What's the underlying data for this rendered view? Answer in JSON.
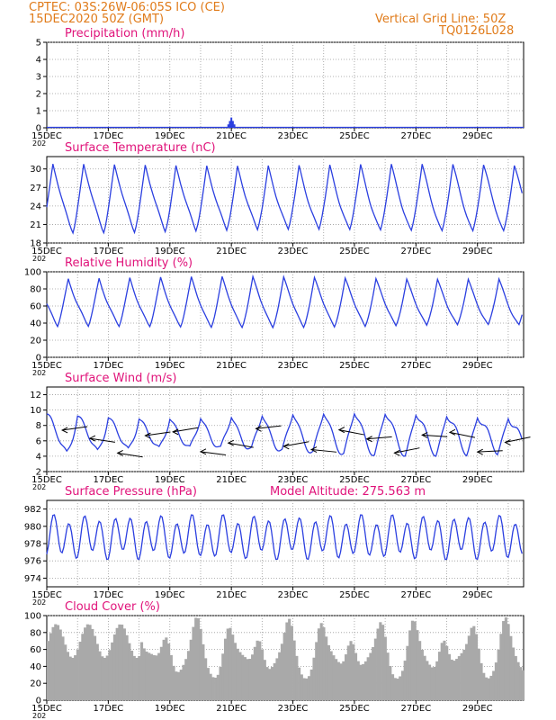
{
  "header": {
    "location": "CPTEC:  03S:26W-06:05S  ICO (CE)",
    "run": "15DEC2020 50Z (GMT)",
    "grid_note": "Vertical Grid Line: 50Z",
    "code": "TQ0126L028"
  },
  "colors": {
    "line": "#2b3fe0",
    "bar": "#a9a9a9",
    "title": "#e0137a",
    "header": "#e07b1a",
    "grid": "#9a9a9a"
  },
  "x_axis": {
    "labels": [
      "15DEC",
      "17DEC",
      "19DEC",
      "21DEC",
      "23DEC",
      "25DEC",
      "27DEC",
      "29DEC"
    ],
    "year_stub": "202"
  },
  "chart_data": [
    {
      "id": "precip",
      "type": "bar",
      "title": "Precipitation (mm/h)",
      "ylim": [
        0,
        5
      ],
      "yticks": [
        0,
        1,
        2,
        3,
        4,
        5
      ],
      "x_days": [
        5.9,
        5.95,
        6.0,
        6.05,
        6.1
      ],
      "values": [
        0.2,
        0.4,
        0.6,
        0.4,
        0.2
      ]
    },
    {
      "id": "temp",
      "type": "line",
      "title": "Surface Temperature (nC)",
      "ylim": [
        18,
        32
      ],
      "yticks": [
        18,
        21,
        24,
        27,
        30
      ],
      "day_range": [
        0,
        15.5
      ],
      "daily_min": 20,
      "daily_max": 30.5
    },
    {
      "id": "rh",
      "type": "line",
      "title": "Relative Humidity (%)",
      "ylim": [
        0,
        100
      ],
      "yticks": [
        0,
        20,
        40,
        60,
        80,
        100
      ],
      "day_range": [
        0,
        15.5
      ],
      "daily_min": 36,
      "daily_max": 92
    },
    {
      "id": "wind",
      "type": "line",
      "title": "Surface Wind (m/s)",
      "ylim": [
        2,
        13
      ],
      "yticks": [
        2,
        4,
        6,
        8,
        10,
        12
      ],
      "day_range": [
        0,
        15.5
      ],
      "daily_min": 4.5,
      "daily_max": 9.5,
      "arrows": [
        0.5,
        1.4,
        2.3,
        3.2,
        4.1,
        5.0,
        5.9,
        6.8,
        7.7,
        8.6,
        9.5,
        10.4,
        11.3,
        12.2,
        13.1,
        14.0,
        14.9
      ]
    },
    {
      "id": "press",
      "type": "line",
      "title": "Surface Pressure (hPa)",
      "extra_label": "Model Altitude: 275.563  m",
      "ylim": [
        973,
        983
      ],
      "yticks": [
        974,
        976,
        978,
        980,
        982
      ],
      "day_range": [
        0,
        15.5
      ],
      "daily_min": 976,
      "daily_max": 981.5
    },
    {
      "id": "cloud",
      "type": "area",
      "title": "Cloud Cover (%)",
      "ylim": [
        0,
        100
      ],
      "yticks": [
        0,
        20,
        40,
        60,
        80,
        100
      ],
      "day_range": [
        0,
        15.5
      ]
    }
  ]
}
